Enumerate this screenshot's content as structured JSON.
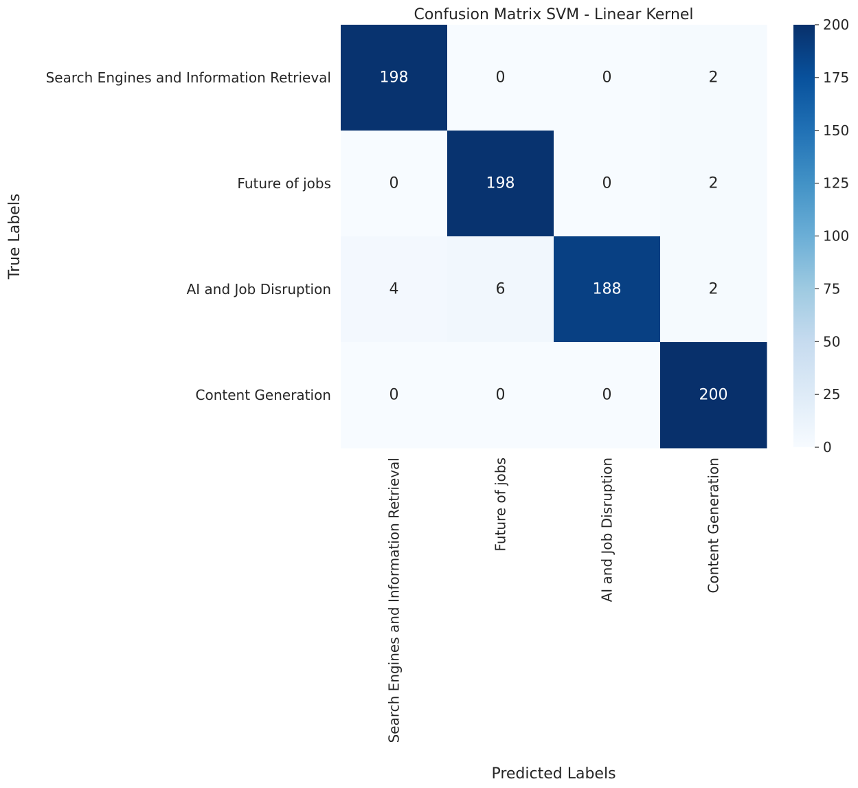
{
  "chart_data": {
    "type": "heatmap",
    "title": "Confusion Matrix SVM - Linear Kernel",
    "xlabel": "Predicted Labels",
    "ylabel": "True Labels",
    "x_categories": [
      "Search Engines and Information Retrieval",
      "Future of jobs",
      "AI and Job Disruption",
      "Content Generation"
    ],
    "y_categories": [
      "Search Engines and Information Retrieval",
      "Future of jobs",
      "AI and Job Disruption",
      "Content Generation"
    ],
    "values": [
      [
        198,
        0,
        0,
        2
      ],
      [
        0,
        198,
        0,
        2
      ],
      [
        4,
        6,
        188,
        2
      ],
      [
        0,
        0,
        0,
        200
      ]
    ],
    "colormap": "Blues",
    "colorbar": {
      "range": [
        0,
        200
      ],
      "ticks": [
        "0",
        "25",
        "50",
        "75",
        "100",
        "125",
        "150",
        "175",
        "200"
      ]
    },
    "grid": false
  }
}
